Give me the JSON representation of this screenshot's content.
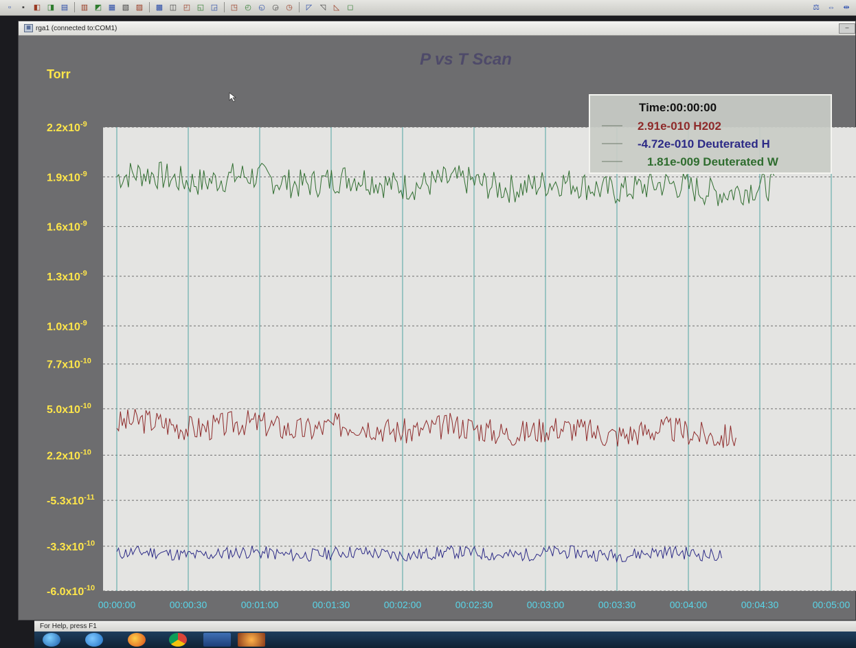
{
  "window": {
    "title": "rga1 (connected to:COM1)"
  },
  "status_bar": {
    "text": "For Help, press F1"
  },
  "toolbar": {
    "left_icons": [
      "new-file-icon",
      "open-folder-icon",
      "save-icon",
      "print-icon",
      "copy-icon",
      "paste-icon",
      "edit-icon",
      "table-icon",
      "grid-icon",
      "scan-icon",
      "chart-icon",
      "bar-chart-icon",
      "list-icon",
      "camera-icon",
      "record-icon",
      "disk-icon",
      "graph-icon",
      "zoom-icon",
      "arrow-down-icon",
      "filter-icon",
      "plot-icon",
      "settings-icon",
      "target-icon",
      "help-icon"
    ],
    "right_icons": [
      "balance-icon",
      "arrows-icon",
      "collapse-icon"
    ]
  },
  "taskbar": {
    "icons": [
      "start-orb-icon",
      "internet-explorer-icon",
      "firefox-icon",
      "chrome-icon",
      "rga-app-icon",
      "firefox-window-icon"
    ]
  },
  "colors": {
    "plot_bg": "#e4e4e2",
    "frame_bg": "#6d6d6f",
    "axis_label": "#ffe64a",
    "time_label": "#59d6e9",
    "title": "#4e4a69",
    "h202": "#8e2a2a",
    "deuterated_h": "#2c2a86",
    "deuterated_w": "#2f6d2f"
  },
  "chart_data": {
    "type": "line",
    "title": "P vs T Scan",
    "ylabel": "Torr",
    "xlabel": "",
    "yticks": [
      "2.2x10-9",
      "1.9x10-9",
      "1.6x10-9",
      "1.3x10-9",
      "1.0x10-9",
      "7.7x10-10",
      "5.0x10-10",
      "2.2x10-10",
      "-5.3x10-11",
      "-3.3x10-10",
      "-6.0x10-10"
    ],
    "ytick_values": [
      2.2e-09,
      1.9e-09,
      1.6e-09,
      1.3e-09,
      1e-09,
      7.7e-10,
      5e-10,
      2.2e-10,
      -5.3e-11,
      -3.3e-10,
      -6e-10
    ],
    "ylim": [
      -6e-10,
      2.2e-09
    ],
    "x_tick_labels": [
      "00:00:00",
      "00:00:30",
      "00:01:00",
      "00:01:30",
      "00:02:00",
      "00:02:30",
      "00:03:00",
      "00:03:30",
      "00:04:00",
      "00:04:30",
      "00:05:00"
    ],
    "xlim_seconds": [
      0,
      300
    ],
    "grid": true,
    "legend": {
      "placement": "top-right",
      "header": "Time:00:00:00",
      "entries": [
        {
          "value": "2.91e-010",
          "name": "H202",
          "color": "#8e2a2a"
        },
        {
          "value": "-4.72e-010",
          "name": "Deuterated H",
          "color": "#2c2a86"
        },
        {
          "value": "1.81e-009",
          "name": "Deuterated W",
          "color": "#2f6d2f"
        }
      ]
    },
    "series": [
      {
        "name": "Deuterated W",
        "color": "#2f6d2f",
        "t_end": 276,
        "base": 1.9e-09,
        "trend": -8e-11,
        "amp": 9e-11,
        "seed": 7
      },
      {
        "name": "H202",
        "color": "#8e2a2a",
        "t_end": 260,
        "base": 4.1e-10,
        "trend": -6e-11,
        "amp": 8e-11,
        "seed": 3
      },
      {
        "name": "Deuterated H",
        "color": "#2c2a86",
        "t_end": 254,
        "base": -3.75e-10,
        "trend": 0.0,
        "amp": 4e-11,
        "seed": 11
      }
    ]
  }
}
